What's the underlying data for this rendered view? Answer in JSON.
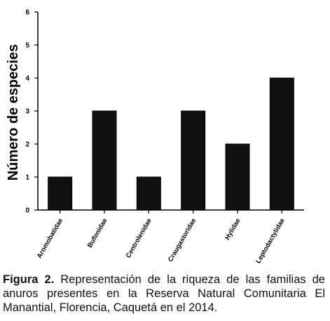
{
  "chart_data": {
    "type": "bar",
    "categories": [
      "Aromobatidae",
      "Bufonidae",
      "Centrolenidae",
      "Craugastoridae",
      "Hylidae",
      "Leptodactylidae"
    ],
    "values": [
      1,
      3,
      1,
      3,
      2,
      4
    ],
    "ylabel": "Número de especies",
    "xlabel": "",
    "ylim": [
      0,
      6
    ],
    "yticks": [
      "0",
      "1",
      "2",
      "3",
      "4",
      "5",
      "6"
    ],
    "grid": false,
    "bar_color": "#111111"
  },
  "caption": {
    "label": "Figura 2.",
    "text": " Representación de la riqueza de las familias de anuros presentes en la Reserva Natural Comunitaria El Manantial, Florencia, Caquetá en el 2014."
  }
}
